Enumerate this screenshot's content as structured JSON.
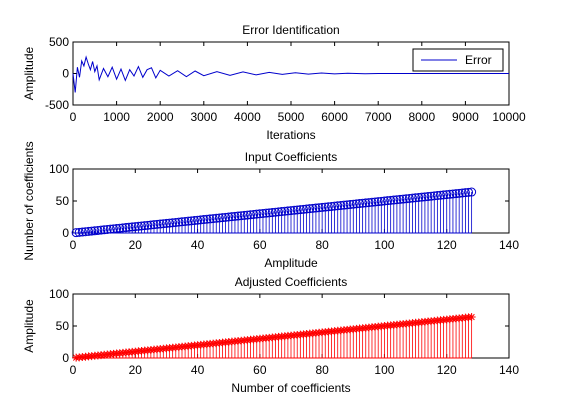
{
  "chart_data": [
    {
      "type": "line",
      "title": "Error Identification",
      "xlabel": "Iterations",
      "ylabel": "Amplitude",
      "xlim": [
        0,
        10000
      ],
      "ylim": [
        -500,
        500
      ],
      "xticks": [
        "0",
        "1000",
        "2000",
        "3000",
        "4000",
        "5000",
        "6000",
        "7000",
        "8000",
        "9000",
        "10000"
      ],
      "yticks": [
        "-500",
        "0",
        "500"
      ],
      "grid": false,
      "legend": "top-right",
      "series": [
        {
          "name": "Error",
          "color": "#0000cc",
          "x": [
            0,
            50,
            100,
            150,
            200,
            250,
            300,
            350,
            400,
            450,
            500,
            550,
            600,
            700,
            800,
            900,
            1000,
            1100,
            1200,
            1300,
            1400,
            1500,
            1600,
            1700,
            1800,
            1900,
            2000,
            2200,
            2400,
            2600,
            2800,
            3000,
            3300,
            3600,
            3900,
            4200,
            4500,
            4800,
            5100,
            5400,
            5700,
            6000,
            6300,
            6700,
            7000,
            10000
          ],
          "y": [
            0,
            -300,
            100,
            -60,
            200,
            120,
            260,
            150,
            60,
            190,
            30,
            120,
            -100,
            80,
            -50,
            100,
            -90,
            70,
            -110,
            60,
            -40,
            110,
            -60,
            60,
            90,
            -70,
            50,
            -40,
            45,
            -50,
            40,
            -35,
            30,
            -28,
            25,
            -22,
            18,
            -15,
            12,
            -10,
            8,
            -6,
            4,
            -3,
            0,
            0
          ]
        }
      ]
    },
    {
      "type": "stem",
      "title": "Input Coefficients",
      "xlabel": "Amplitude",
      "ylabel": "Number of coefficients",
      "xlim": [
        0,
        140
      ],
      "ylim": [
        0,
        100
      ],
      "xticks": [
        "0",
        "20",
        "40",
        "60",
        "80",
        "100",
        "120",
        "140"
      ],
      "yticks": [
        "0",
        "50",
        "100"
      ],
      "grid": false,
      "marker": "circle",
      "series": [
        {
          "color": "#0000cc",
          "x_start": 1,
          "x_end": 128,
          "step": 1,
          "y_start": 0.5,
          "y_step": 0.5
        }
      ]
    },
    {
      "type": "stem",
      "title": "Adjusted Coefficients",
      "xlabel": "Number of coefficients",
      "ylabel": "Amplitude",
      "xlim": [
        0,
        140
      ],
      "ylim": [
        0,
        100
      ],
      "xticks": [
        "0",
        "20",
        "40",
        "60",
        "80",
        "100",
        "120",
        "140"
      ],
      "yticks": [
        "0",
        "50",
        "100"
      ],
      "grid": false,
      "marker": "star",
      "series": [
        {
          "color": "#ff0000",
          "x_start": 1,
          "x_end": 128,
          "step": 1,
          "y_start": 0.5,
          "y_step": 0.5
        }
      ]
    }
  ]
}
